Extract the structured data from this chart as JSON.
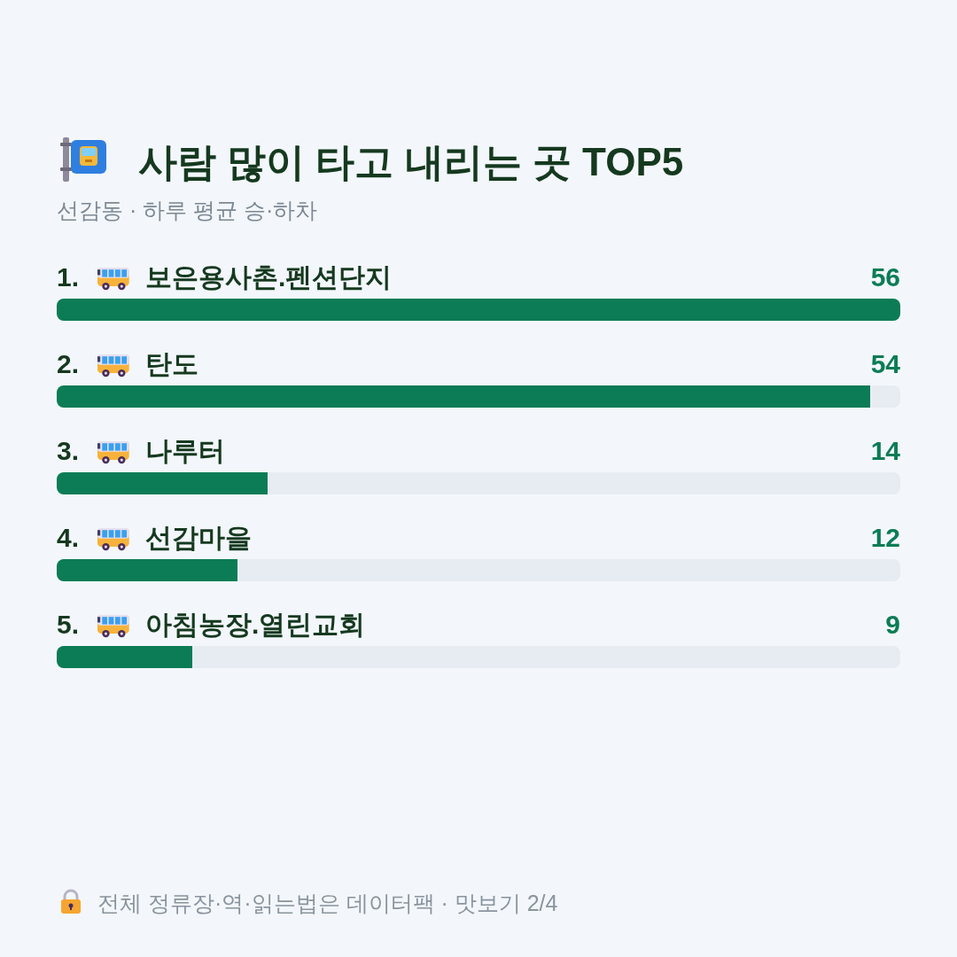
{
  "chart_data": {
    "type": "bar",
    "orientation": "horizontal",
    "title": "사람 많이 타고 내리는 곳 TOP5",
    "subtitle": "선감동 · 하루 평균 승·하차",
    "categories": [
      "1. 보은용사촌.펜션단지",
      "2. 탄도",
      "3. 나루터",
      "4. 선감마을",
      "5. 아침농장.열린교회"
    ],
    "values": [
      56,
      54,
      14,
      12,
      9
    ],
    "color": "#0b7c55",
    "data_labels": true,
    "annotations": [
      "전체 정류장·역·읽는법은 데이터팩 · 맛보기 2/4"
    ]
  }
}
